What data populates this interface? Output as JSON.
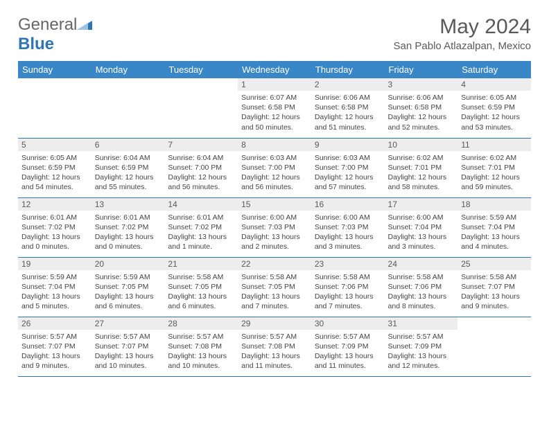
{
  "brand": {
    "word1": "General",
    "word2": "Blue"
  },
  "title": "May 2024",
  "location": "San Pablo Atlazalpan, Mexico",
  "colors": {
    "header_bg": "#3a87c7",
    "border": "#2e75b6",
    "daynum_bg": "#ededed",
    "text_grey": "#595959",
    "brand_grey": "#666666",
    "brand_blue": "#2e75b6"
  },
  "fonts": {
    "title_size": 30,
    "location_size": 15,
    "th_size": 13,
    "daynum_size": 12,
    "body_size": 10.5
  },
  "weekdays": [
    "Sunday",
    "Monday",
    "Tuesday",
    "Wednesday",
    "Thursday",
    "Friday",
    "Saturday"
  ],
  "weeks": [
    [
      {
        "n": "",
        "lines": [
          "",
          "",
          "",
          ""
        ]
      },
      {
        "n": "",
        "lines": [
          "",
          "",
          "",
          ""
        ]
      },
      {
        "n": "",
        "lines": [
          "",
          "",
          "",
          ""
        ]
      },
      {
        "n": "1",
        "lines": [
          "Sunrise: 6:07 AM",
          "Sunset: 6:58 PM",
          "Daylight: 12 hours",
          "and 50 minutes."
        ]
      },
      {
        "n": "2",
        "lines": [
          "Sunrise: 6:06 AM",
          "Sunset: 6:58 PM",
          "Daylight: 12 hours",
          "and 51 minutes."
        ]
      },
      {
        "n": "3",
        "lines": [
          "Sunrise: 6:06 AM",
          "Sunset: 6:58 PM",
          "Daylight: 12 hours",
          "and 52 minutes."
        ]
      },
      {
        "n": "4",
        "lines": [
          "Sunrise: 6:05 AM",
          "Sunset: 6:59 PM",
          "Daylight: 12 hours",
          "and 53 minutes."
        ]
      }
    ],
    [
      {
        "n": "5",
        "lines": [
          "Sunrise: 6:05 AM",
          "Sunset: 6:59 PM",
          "Daylight: 12 hours",
          "and 54 minutes."
        ]
      },
      {
        "n": "6",
        "lines": [
          "Sunrise: 6:04 AM",
          "Sunset: 6:59 PM",
          "Daylight: 12 hours",
          "and 55 minutes."
        ]
      },
      {
        "n": "7",
        "lines": [
          "Sunrise: 6:04 AM",
          "Sunset: 7:00 PM",
          "Daylight: 12 hours",
          "and 56 minutes."
        ]
      },
      {
        "n": "8",
        "lines": [
          "Sunrise: 6:03 AM",
          "Sunset: 7:00 PM",
          "Daylight: 12 hours",
          "and 56 minutes."
        ]
      },
      {
        "n": "9",
        "lines": [
          "Sunrise: 6:03 AM",
          "Sunset: 7:00 PM",
          "Daylight: 12 hours",
          "and 57 minutes."
        ]
      },
      {
        "n": "10",
        "lines": [
          "Sunrise: 6:02 AM",
          "Sunset: 7:01 PM",
          "Daylight: 12 hours",
          "and 58 minutes."
        ]
      },
      {
        "n": "11",
        "lines": [
          "Sunrise: 6:02 AM",
          "Sunset: 7:01 PM",
          "Daylight: 12 hours",
          "and 59 minutes."
        ]
      }
    ],
    [
      {
        "n": "12",
        "lines": [
          "Sunrise: 6:01 AM",
          "Sunset: 7:02 PM",
          "Daylight: 13 hours",
          "and 0 minutes."
        ]
      },
      {
        "n": "13",
        "lines": [
          "Sunrise: 6:01 AM",
          "Sunset: 7:02 PM",
          "Daylight: 13 hours",
          "and 0 minutes."
        ]
      },
      {
        "n": "14",
        "lines": [
          "Sunrise: 6:01 AM",
          "Sunset: 7:02 PM",
          "Daylight: 13 hours",
          "and 1 minute."
        ]
      },
      {
        "n": "15",
        "lines": [
          "Sunrise: 6:00 AM",
          "Sunset: 7:03 PM",
          "Daylight: 13 hours",
          "and 2 minutes."
        ]
      },
      {
        "n": "16",
        "lines": [
          "Sunrise: 6:00 AM",
          "Sunset: 7:03 PM",
          "Daylight: 13 hours",
          "and 3 minutes."
        ]
      },
      {
        "n": "17",
        "lines": [
          "Sunrise: 6:00 AM",
          "Sunset: 7:04 PM",
          "Daylight: 13 hours",
          "and 3 minutes."
        ]
      },
      {
        "n": "18",
        "lines": [
          "Sunrise: 5:59 AM",
          "Sunset: 7:04 PM",
          "Daylight: 13 hours",
          "and 4 minutes."
        ]
      }
    ],
    [
      {
        "n": "19",
        "lines": [
          "Sunrise: 5:59 AM",
          "Sunset: 7:04 PM",
          "Daylight: 13 hours",
          "and 5 minutes."
        ]
      },
      {
        "n": "20",
        "lines": [
          "Sunrise: 5:59 AM",
          "Sunset: 7:05 PM",
          "Daylight: 13 hours",
          "and 6 minutes."
        ]
      },
      {
        "n": "21",
        "lines": [
          "Sunrise: 5:58 AM",
          "Sunset: 7:05 PM",
          "Daylight: 13 hours",
          "and 6 minutes."
        ]
      },
      {
        "n": "22",
        "lines": [
          "Sunrise: 5:58 AM",
          "Sunset: 7:05 PM",
          "Daylight: 13 hours",
          "and 7 minutes."
        ]
      },
      {
        "n": "23",
        "lines": [
          "Sunrise: 5:58 AM",
          "Sunset: 7:06 PM",
          "Daylight: 13 hours",
          "and 7 minutes."
        ]
      },
      {
        "n": "24",
        "lines": [
          "Sunrise: 5:58 AM",
          "Sunset: 7:06 PM",
          "Daylight: 13 hours",
          "and 8 minutes."
        ]
      },
      {
        "n": "25",
        "lines": [
          "Sunrise: 5:58 AM",
          "Sunset: 7:07 PM",
          "Daylight: 13 hours",
          "and 9 minutes."
        ]
      }
    ],
    [
      {
        "n": "26",
        "lines": [
          "Sunrise: 5:57 AM",
          "Sunset: 7:07 PM",
          "Daylight: 13 hours",
          "and 9 minutes."
        ]
      },
      {
        "n": "27",
        "lines": [
          "Sunrise: 5:57 AM",
          "Sunset: 7:07 PM",
          "Daylight: 13 hours",
          "and 10 minutes."
        ]
      },
      {
        "n": "28",
        "lines": [
          "Sunrise: 5:57 AM",
          "Sunset: 7:08 PM",
          "Daylight: 13 hours",
          "and 10 minutes."
        ]
      },
      {
        "n": "29",
        "lines": [
          "Sunrise: 5:57 AM",
          "Sunset: 7:08 PM",
          "Daylight: 13 hours",
          "and 11 minutes."
        ]
      },
      {
        "n": "30",
        "lines": [
          "Sunrise: 5:57 AM",
          "Sunset: 7:09 PM",
          "Daylight: 13 hours",
          "and 11 minutes."
        ]
      },
      {
        "n": "31",
        "lines": [
          "Sunrise: 5:57 AM",
          "Sunset: 7:09 PM",
          "Daylight: 13 hours",
          "and 12 minutes."
        ]
      },
      {
        "n": "",
        "lines": [
          "",
          "",
          "",
          ""
        ]
      }
    ]
  ]
}
